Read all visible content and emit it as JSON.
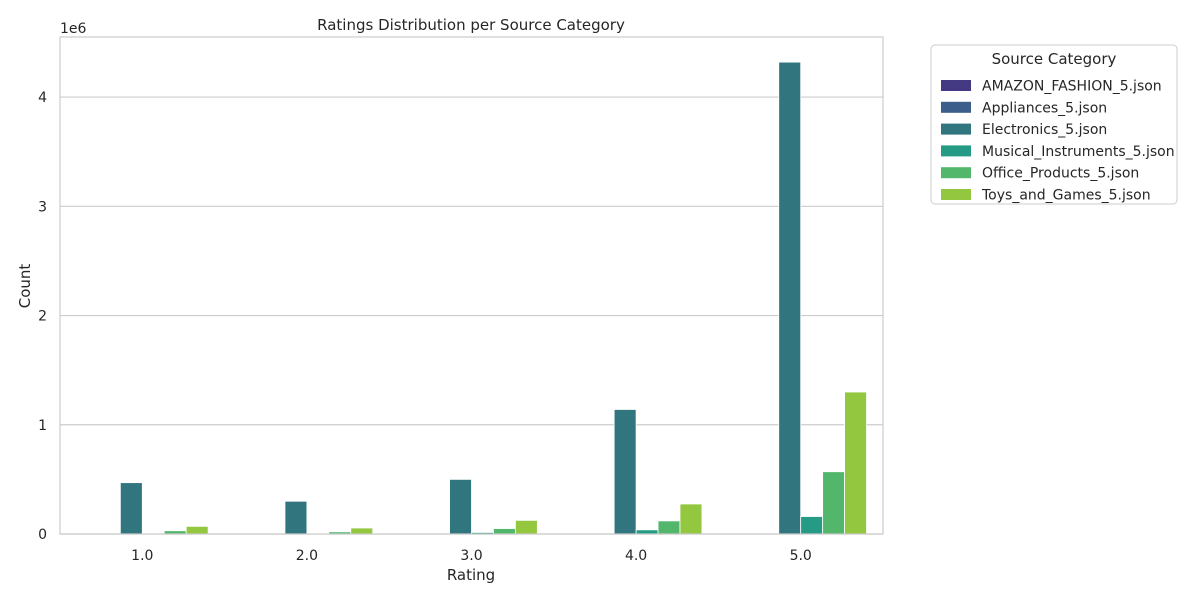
{
  "chart_data": {
    "type": "bar",
    "title": "Ratings Distribution per Source Category",
    "xlabel": "Rating",
    "ylabel": "Count",
    "y_scale_label": "1e6",
    "y_tick_labels": [
      "0",
      "1",
      "2",
      "3",
      "4"
    ],
    "ylim": [
      0,
      4.55
    ],
    "categories": [
      "1.0",
      "2.0",
      "3.0",
      "4.0",
      "5.0"
    ],
    "legend_title": "Source Category",
    "legend_position": "outside-top-right",
    "grid": true,
    "series": [
      {
        "name": "AMAZON_FASHION_5.json",
        "color": "#443983",
        "values": [
          0.0001,
          0.0001,
          0.0002,
          0.0006,
          0.0025
        ]
      },
      {
        "name": "Appliances_5.json",
        "color": "#3b5f8a",
        "values": [
          0.0002,
          0.0001,
          0.0002,
          0.0004,
          0.0018
        ]
      },
      {
        "name": "Electronics_5.json",
        "color": "#31767f",
        "values": [
          0.47,
          0.3,
          0.5,
          1.14,
          4.32
        ]
      },
      {
        "name": "Musical_Instruments_5.json",
        "color": "#259a84",
        "values": [
          0.008,
          0.007,
          0.014,
          0.038,
          0.16
        ]
      },
      {
        "name": "Office_Products_5.json",
        "color": "#52b76a",
        "values": [
          0.03,
          0.02,
          0.05,
          0.12,
          0.57
        ]
      },
      {
        "name": "Toys_and_Games_5.json",
        "color": "#93c740",
        "values": [
          0.07,
          0.055,
          0.125,
          0.275,
          1.3
        ]
      }
    ]
  }
}
